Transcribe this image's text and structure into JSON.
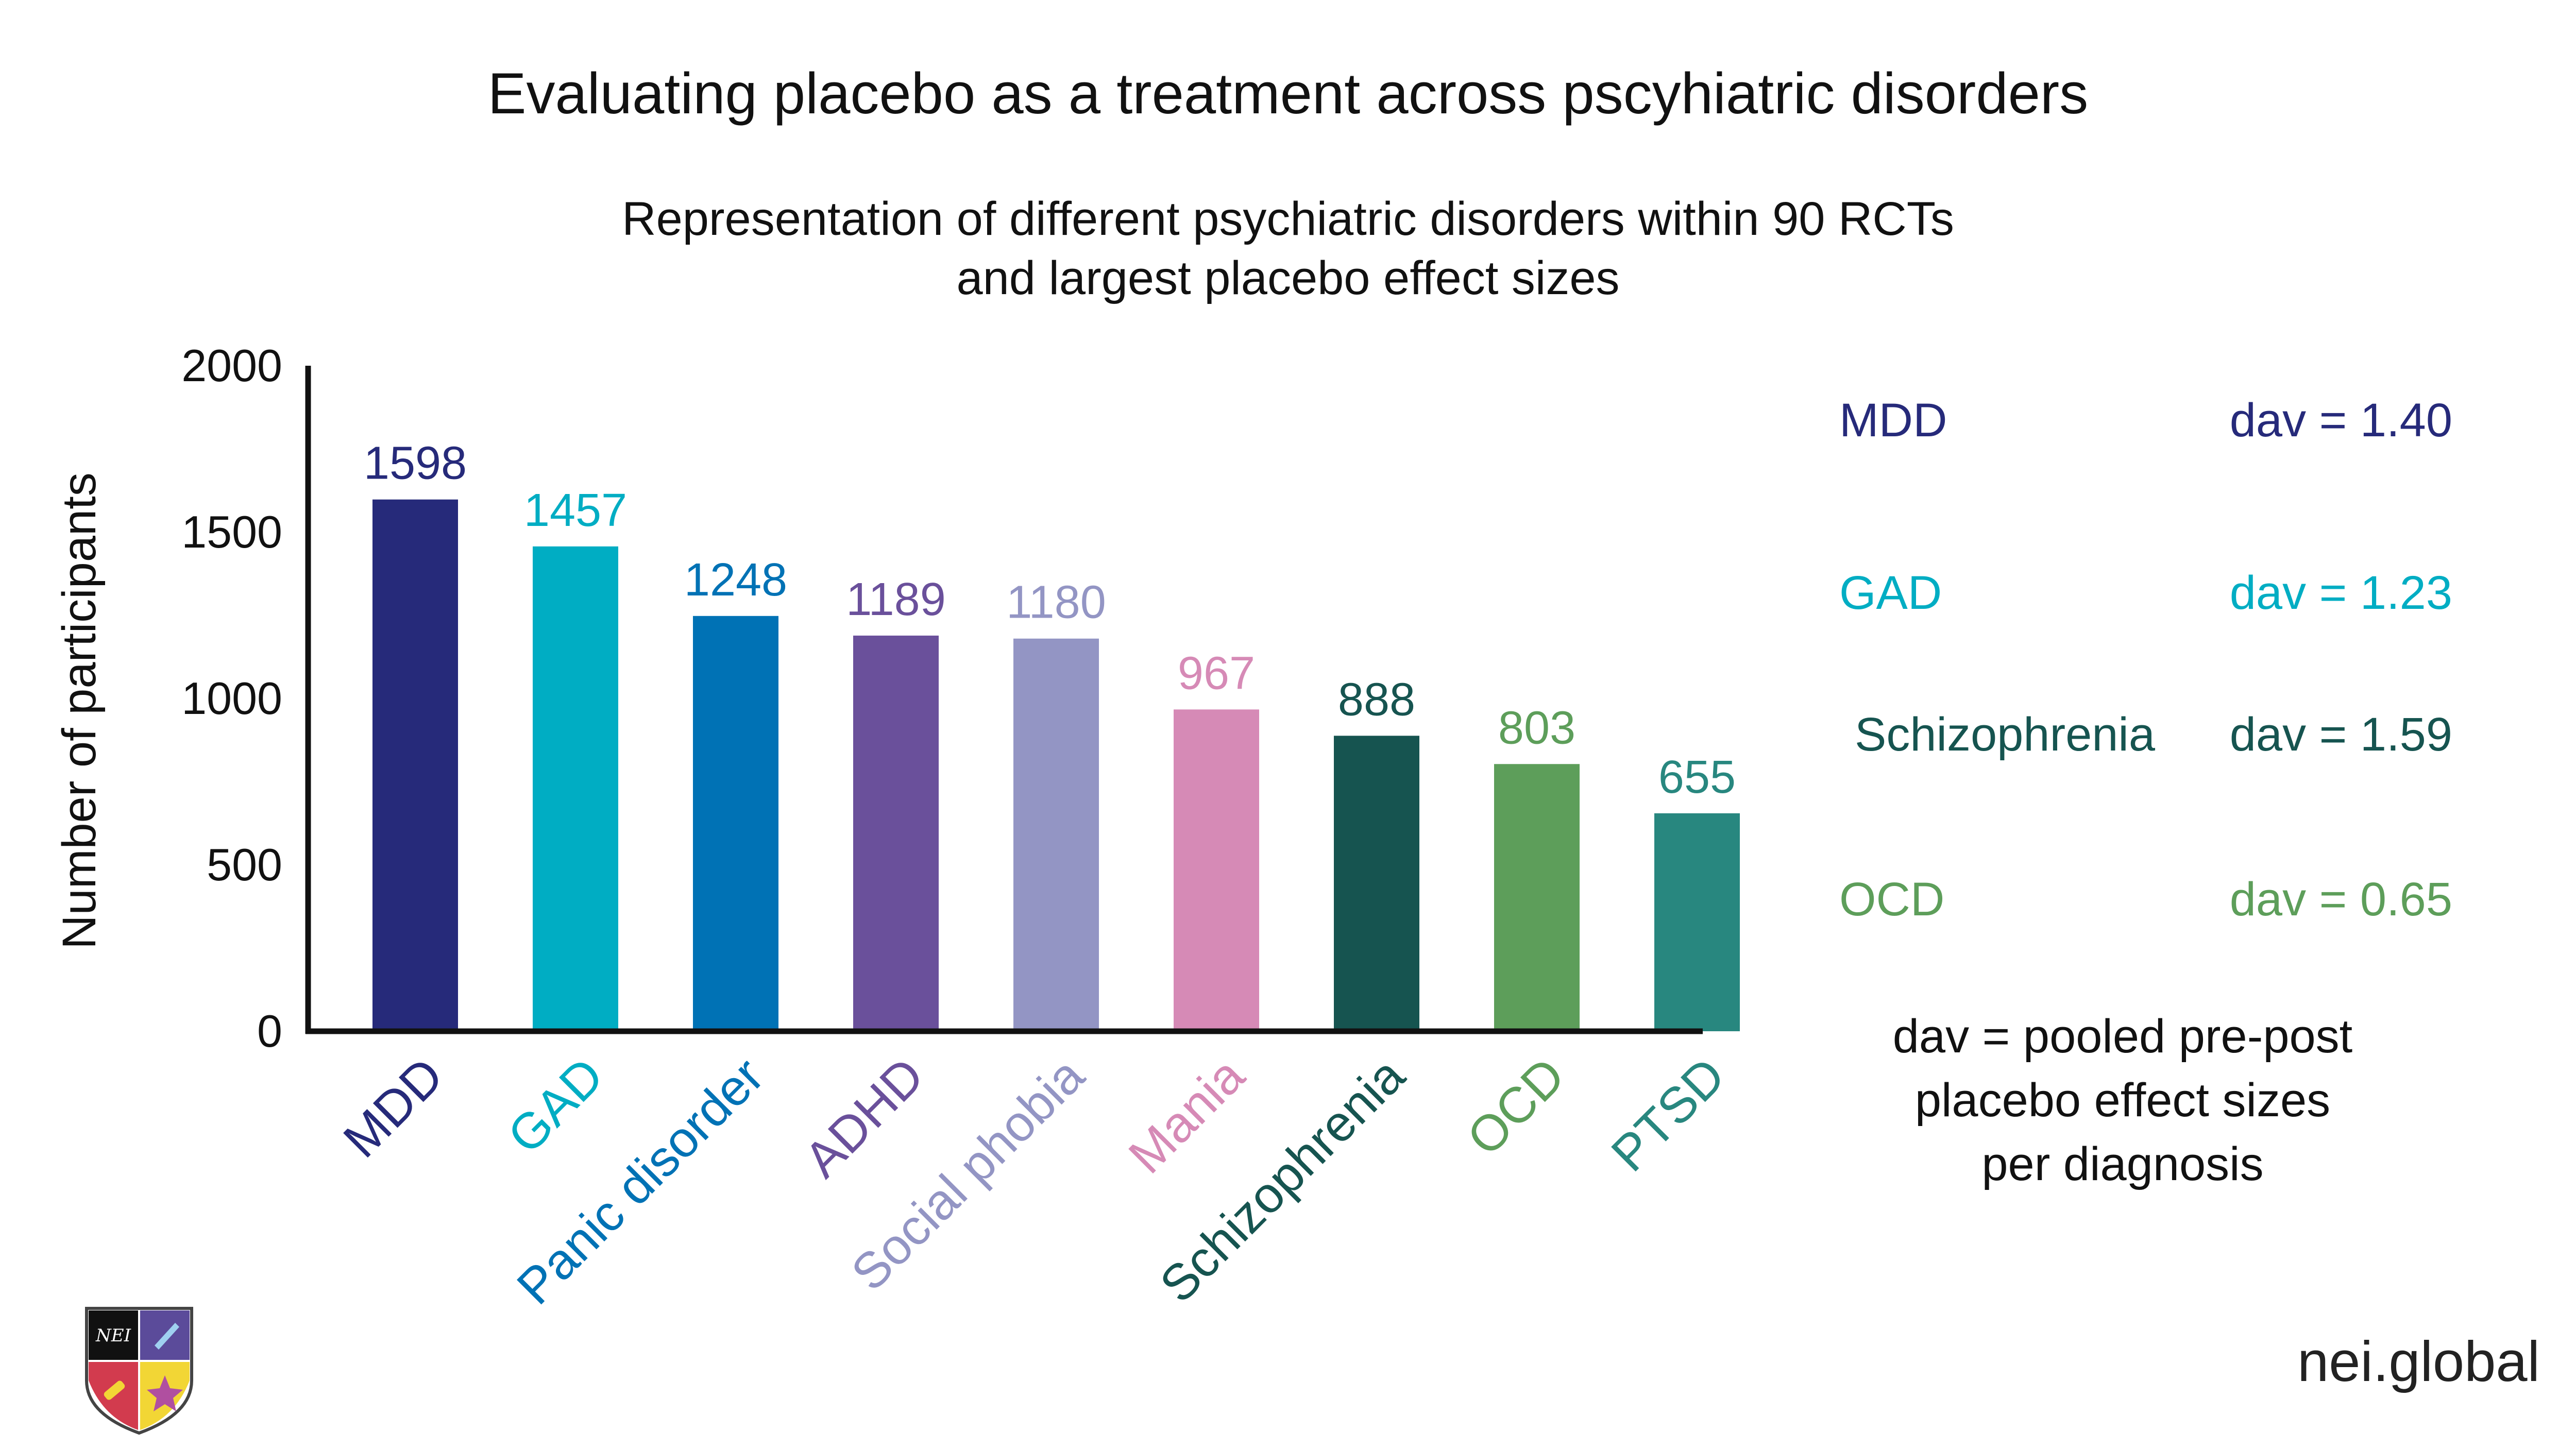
{
  "title": "Evaluating placebo as a treatment across pscyhiatric disorders",
  "subtitle_line1": "Representation of different psychiatric disorders within 90 RCTs",
  "subtitle_line2": "and largest placebo effect sizes",
  "chart_data": {
    "type": "bar",
    "title": "Evaluating placebo as a treatment across pscyhiatric disorders",
    "subtitle": "Representation of different psychiatric disorders within 90 RCTs and largest placebo effect sizes",
    "categories": [
      "MDD",
      "GAD",
      "Panic disorder",
      "ADHD",
      "Social phobia",
      "Mania",
      "Schizophrenia",
      "OCD",
      "PTSD"
    ],
    "values": [
      1598,
      1457,
      1248,
      1189,
      1180,
      967,
      888,
      803,
      655
    ],
    "colors": [
      "#262a7a",
      "#00adc3",
      "#0072b5",
      "#6a509b",
      "#9395c4",
      "#d68ab6",
      "#165450",
      "#5d9e5a",
      "#28877f"
    ],
    "ylabel": "Number of participants",
    "xlabel": "",
    "ylim": [
      0,
      2000
    ],
    "yticks": [
      0,
      500,
      1000,
      1500,
      2000
    ],
    "grid": false,
    "legend": "none"
  },
  "effect_sizes": [
    {
      "name": "MDD",
      "value": "dav = 1.40",
      "color": "#262a7a"
    },
    {
      "name": "GAD",
      "value": "dav = 1.23",
      "color": "#00adc3"
    },
    {
      "name": "Schizophrenia",
      "value": "dav = 1.59",
      "color": "#165450"
    },
    {
      "name": "OCD",
      "value": "dav = 0.65",
      "color": "#5d9e5a"
    }
  ],
  "note_lines": [
    "dav = pooled pre-post",
    "placebo effect sizes",
    "per diagnosis"
  ],
  "site": "nei.global",
  "logo": {
    "text": "NEI",
    "name": "nei-crest-logo"
  }
}
